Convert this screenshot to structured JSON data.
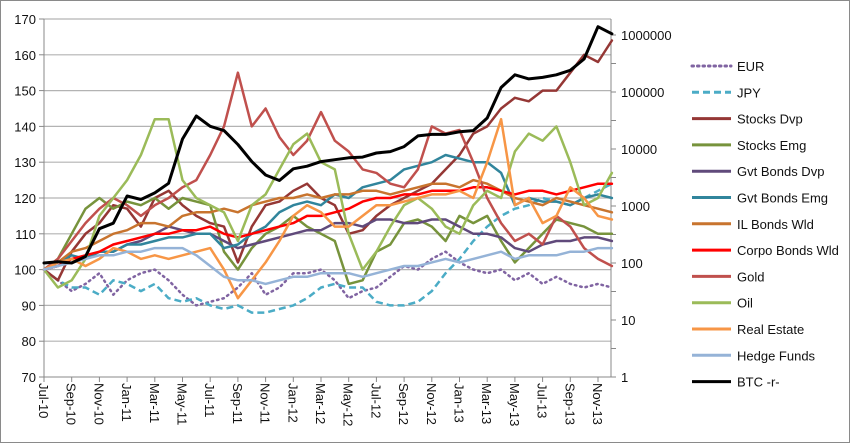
{
  "chart_data": {
    "type": "line",
    "title": "",
    "x": [
      "Jul-10",
      "Aug-10",
      "Sep-10",
      "Oct-10",
      "Nov-10",
      "Dec-10",
      "Jan-11",
      "Feb-11",
      "Mar-11",
      "Apr-11",
      "May-11",
      "Jun-11",
      "Jul-11",
      "Aug-11",
      "Sep-11",
      "Oct-11",
      "Nov-11",
      "Dec-11",
      "Jan-12",
      "Feb-12",
      "Mar-12",
      "Apr-12",
      "May-12",
      "Jun-12",
      "Jul-12",
      "Aug-12",
      "Sep-12",
      "Oct-12",
      "Nov-12",
      "Dec-12",
      "Jan-13",
      "Feb-13",
      "Mar-13",
      "Apr-13",
      "May-13",
      "Jun-13",
      "Jul-13",
      "Aug-13",
      "Sep-13",
      "Oct-13",
      "Nov-13",
      "Dec-13"
    ],
    "x_tick_labels": [
      "Jul-10",
      "Sep-10",
      "Nov-10",
      "Jan-11",
      "Mar-11",
      "May-11",
      "Jul-11",
      "Sep-11",
      "Nov-11",
      "Jan-12",
      "Mar-12",
      "May-12",
      "Jul-12",
      "Sep-12",
      "Nov-12",
      "Jan-13",
      "Mar-13",
      "May-13",
      "Jul-13",
      "Sep-13",
      "Nov-13"
    ],
    "y_left": {
      "ylim": [
        70,
        170
      ],
      "ticks": [
        "70",
        "80",
        "90",
        "100",
        "110",
        "120",
        "130",
        "140",
        "150",
        "160",
        "170"
      ],
      "grid": true
    },
    "y_right": {
      "scale": "log",
      "ylim": [
        1,
        1000000
      ],
      "ticks": [
        "1",
        "10",
        "100",
        "1000",
        "10000",
        "100000",
        "1000000"
      ]
    },
    "legend_position": "right",
    "series": [
      {
        "name": "EUR",
        "color": "#8064A2",
        "style": "dotted",
        "axis": "left",
        "values": [
          100,
          97,
          94,
          96,
          99,
          93,
          97,
          99,
          100,
          97,
          93,
          90,
          91,
          92,
          95,
          99,
          93,
          95,
          99,
          99,
          100,
          97,
          92,
          94,
          95,
          98,
          101,
          100,
          103,
          105,
          102,
          100,
          99,
          100,
          97,
          99,
          96,
          98,
          96,
          95,
          96,
          95
        ]
      },
      {
        "name": "JPY",
        "color": "#4BACC6",
        "style": "dashed",
        "axis": "left",
        "values": [
          100,
          97,
          95,
          95,
          93,
          97,
          96,
          94,
          96,
          92,
          91,
          92,
          90,
          89,
          90,
          88,
          88,
          89,
          90,
          92,
          95,
          96,
          95,
          95,
          91,
          90,
          90,
          91,
          94,
          99,
          103,
          108,
          112,
          115,
          117,
          118,
          120,
          119,
          118,
          120,
          122,
          124
        ]
      },
      {
        "name": "Stocks Dvp",
        "color": "#953735",
        "style": "solid",
        "axis": "left",
        "values": [
          100,
          97,
          105,
          110,
          113,
          118,
          117,
          112,
          120,
          122,
          118,
          115,
          113,
          112,
          102,
          112,
          118,
          119,
          122,
          124,
          120,
          118,
          110,
          111,
          115,
          118,
          120,
          122,
          124,
          128,
          132,
          138,
          140,
          145,
          148,
          147,
          150,
          150,
          155,
          160,
          158,
          164
        ]
      },
      {
        "name": "Stocks Emg",
        "color": "#77933C",
        "style": "solid",
        "axis": "left",
        "values": [
          100,
          103,
          110,
          117,
          120,
          117,
          119,
          118,
          120,
          117,
          120,
          119,
          118,
          105,
          100,
          106,
          110,
          112,
          115,
          112,
          110,
          108,
          96,
          97,
          105,
          107,
          113,
          114,
          112,
          108,
          115,
          113,
          115,
          108,
          102,
          106,
          110,
          114,
          113,
          112,
          110,
          110
        ]
      },
      {
        "name": "Gvt Bonds Dvp",
        "color": "#604A7B",
        "style": "solid",
        "axis": "left",
        "values": [
          100,
          101,
          103,
          103,
          105,
          105,
          107,
          108,
          110,
          112,
          111,
          110,
          110,
          108,
          106,
          107,
          108,
          109,
          110,
          111,
          111,
          113,
          113,
          112,
          114,
          114,
          113,
          113,
          114,
          114,
          112,
          110,
          110,
          109,
          106,
          105,
          107,
          108,
          108,
          109,
          109,
          108
        ]
      },
      {
        "name": "Gvt Bonds Emg",
        "color": "#31859C",
        "style": "solid",
        "axis": "left",
        "values": [
          100,
          102,
          104,
          103,
          105,
          105,
          107,
          107,
          108,
          109,
          109,
          110,
          110,
          106,
          107,
          110,
          112,
          116,
          118,
          119,
          118,
          121,
          120,
          123,
          124,
          125,
          128,
          129,
          130,
          132,
          131,
          130,
          130,
          127,
          118,
          120,
          119,
          119,
          118,
          120,
          121,
          120
        ]
      },
      {
        "name": "IL Bonds Wld",
        "color": "#C8742E",
        "style": "solid",
        "axis": "left",
        "values": [
          100,
          102,
          105,
          106,
          108,
          110,
          111,
          113,
          113,
          112,
          115,
          116,
          116,
          117,
          116,
          118,
          119,
          120,
          120,
          121,
          120,
          121,
          121,
          122,
          122,
          121,
          122,
          123,
          124,
          124,
          123,
          125,
          124,
          122,
          120,
          119,
          118,
          120,
          119,
          118,
          117,
          116
        ]
      },
      {
        "name": "Corpo Bonds Wld",
        "color": "#FF0000",
        "style": "solid",
        "axis": "left",
        "values": [
          100,
          101,
          103,
          104,
          105,
          107,
          108,
          109,
          110,
          110,
          111,
          111,
          112,
          110,
          109,
          110,
          111,
          112,
          113,
          115,
          115,
          116,
          117,
          119,
          120,
          120,
          121,
          121,
          122,
          122,
          122,
          123,
          123,
          122,
          121,
          122,
          122,
          121,
          122,
          123,
          124,
          124
        ]
      },
      {
        "name": "Gold",
        "color": "#C0504D",
        "style": "solid",
        "axis": "left",
        "values": [
          100,
          103,
          108,
          113,
          117,
          120,
          118,
          115,
          118,
          120,
          123,
          125,
          132,
          140,
          155,
          140,
          145,
          137,
          132,
          136,
          144,
          136,
          133,
          128,
          127,
          124,
          123,
          128,
          140,
          138,
          139,
          130,
          120,
          113,
          108,
          110,
          107,
          115,
          112,
          106,
          103,
          101
        ]
      },
      {
        "name": "Oil",
        "color": "#9BBB59",
        "style": "solid",
        "axis": "left",
        "values": [
          100,
          95,
          97,
          103,
          115,
          120,
          125,
          132,
          142,
          142,
          125,
          120,
          118,
          116,
          108,
          118,
          121,
          128,
          135,
          138,
          130,
          128,
          110,
          100,
          105,
          112,
          118,
          120,
          117,
          112,
          110,
          118,
          122,
          120,
          133,
          138,
          136,
          140,
          130,
          118,
          120,
          127
        ]
      },
      {
        "name": "Real Estate",
        "color": "#F79646",
        "style": "solid",
        "axis": "left",
        "values": [
          100,
          102,
          103,
          101,
          103,
          106,
          105,
          103,
          104,
          103,
          104,
          105,
          106,
          100,
          92,
          97,
          102,
          108,
          115,
          118,
          116,
          112,
          112,
          115,
          118,
          118,
          119,
          120,
          121,
          121,
          122,
          120,
          130,
          142,
          118,
          120,
          113,
          115,
          123,
          120,
          115,
          114
        ]
      },
      {
        "name": "Hedge Funds",
        "color": "#95B3D7",
        "style": "solid",
        "axis": "left",
        "values": [
          100,
          101,
          102,
          103,
          104,
          104,
          105,
          105,
          106,
          106,
          106,
          104,
          101,
          98,
          97,
          97,
          96,
          97,
          98,
          98,
          99,
          99,
          99,
          98,
          99,
          100,
          101,
          101,
          102,
          103,
          102,
          103,
          104,
          105,
          103,
          104,
          104,
          104,
          105,
          105,
          106,
          106
        ]
      },
      {
        "name": "BTC -r-",
        "color": "#000000",
        "style": "solid",
        "axis": "right",
        "values": [
          100,
          105,
          100,
          130,
          400,
          500,
          1500,
          1300,
          1700,
          2500,
          15000,
          38000,
          25000,
          21000,
          12000,
          6000,
          3500,
          2800,
          4500,
          5000,
          6000,
          6500,
          7000,
          7200,
          8500,
          9000,
          11000,
          17000,
          18000,
          18000,
          20000,
          21000,
          35000,
          120000,
          200000,
          170000,
          180000,
          200000,
          240000,
          380000,
          1400000,
          1050000
        ]
      }
    ]
  }
}
